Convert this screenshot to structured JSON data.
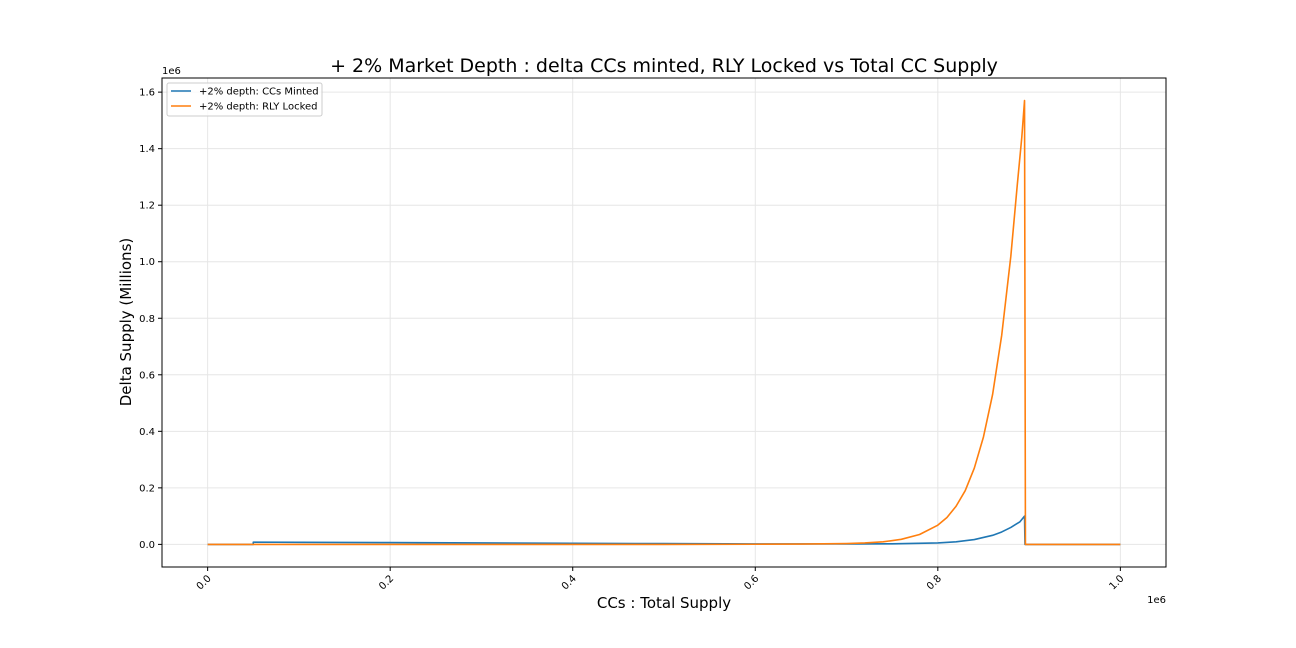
{
  "chart_data": {
    "type": "line",
    "title": "+ 2% Market Depth : delta CCs minted, RLY Locked vs Total CC Supply",
    "xlabel": "CCs : Total Supply",
    "ylabel": "Delta Supply (Millions)",
    "x_offset_text": "1e6",
    "y_offset_text": "1e6",
    "xlim": [
      -50000,
      1050000
    ],
    "ylim": [
      -80000,
      1650000
    ],
    "x_ticks": [
      0,
      200000,
      400000,
      600000,
      800000,
      1000000
    ],
    "x_tick_labels": [
      "0.0",
      "0.2",
      "0.4",
      "0.6",
      "0.8",
      "1.0"
    ],
    "y_ticks": [
      0,
      200000,
      400000,
      600000,
      800000,
      1000000,
      1200000,
      1400000,
      1600000
    ],
    "y_tick_labels": [
      "0.0",
      "0.2",
      "0.4",
      "0.6",
      "0.8",
      "1.0",
      "1.2",
      "1.4",
      "1.6"
    ],
    "grid": true,
    "legend_position": "top-left",
    "series": [
      {
        "name": "+2% depth: CCs Minted",
        "color": "#1f77b4",
        "points": [
          [
            0,
            0
          ],
          [
            50000,
            0
          ],
          [
            50000,
            8000
          ],
          [
            100000,
            7500
          ],
          [
            200000,
            6500
          ],
          [
            300000,
            5200
          ],
          [
            400000,
            4000
          ],
          [
            500000,
            2800
          ],
          [
            600000,
            1800
          ],
          [
            700000,
            1500
          ],
          [
            750000,
            2000
          ],
          [
            800000,
            5000
          ],
          [
            820000,
            9000
          ],
          [
            840000,
            17000
          ],
          [
            860000,
            32000
          ],
          [
            870000,
            44000
          ],
          [
            880000,
            60000
          ],
          [
            890000,
            80000
          ],
          [
            895000,
            100000
          ],
          [
            895500,
            0
          ],
          [
            1000000,
            0
          ]
        ]
      },
      {
        "name": "+2% depth: RLY Locked",
        "color": "#ff7f0e",
        "points": [
          [
            0,
            0
          ],
          [
            500000,
            0
          ],
          [
            600000,
            500
          ],
          [
            650000,
            1000
          ],
          [
            700000,
            3000
          ],
          [
            720000,
            5000
          ],
          [
            740000,
            9000
          ],
          [
            760000,
            18000
          ],
          [
            780000,
            35000
          ],
          [
            800000,
            68000
          ],
          [
            810000,
            95000
          ],
          [
            820000,
            135000
          ],
          [
            830000,
            190000
          ],
          [
            840000,
            270000
          ],
          [
            850000,
            380000
          ],
          [
            860000,
            530000
          ],
          [
            870000,
            740000
          ],
          [
            880000,
            1020000
          ],
          [
            887000,
            1270000
          ],
          [
            892000,
            1440000
          ],
          [
            895000,
            1570000
          ],
          [
            896000,
            0
          ],
          [
            1000000,
            0
          ]
        ]
      }
    ]
  }
}
